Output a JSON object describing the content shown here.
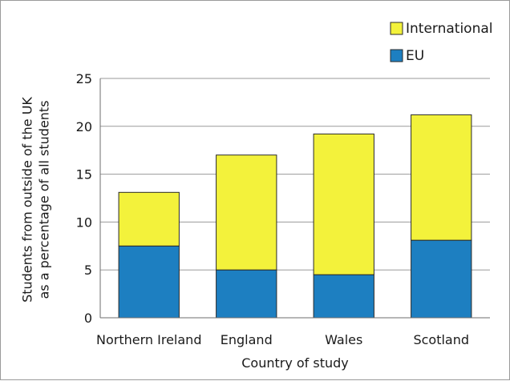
{
  "chart_data": {
    "type": "bar",
    "stacked": true,
    "title": "",
    "xlabel": "Country of study",
    "ylabel_lines": [
      "Students from outside of the UK",
      "as a percentage of all students"
    ],
    "categories": [
      "Northern Ireland",
      "England",
      "Wales",
      "Scotland"
    ],
    "series": [
      {
        "name": "EU",
        "color": "#1d7fc1",
        "values": [
          7.5,
          5.0,
          4.5,
          8.1
        ]
      },
      {
        "name": "International",
        "color": "#f3f23b",
        "values": [
          5.6,
          12.0,
          14.7,
          13.1
        ]
      }
    ],
    "ylim": [
      0,
      25
    ],
    "yticks": [
      "0",
      "5",
      "10",
      "15",
      "20",
      "25"
    ],
    "grid": true,
    "legend": {
      "placement": "top-right",
      "order": [
        "International",
        "EU"
      ]
    }
  }
}
